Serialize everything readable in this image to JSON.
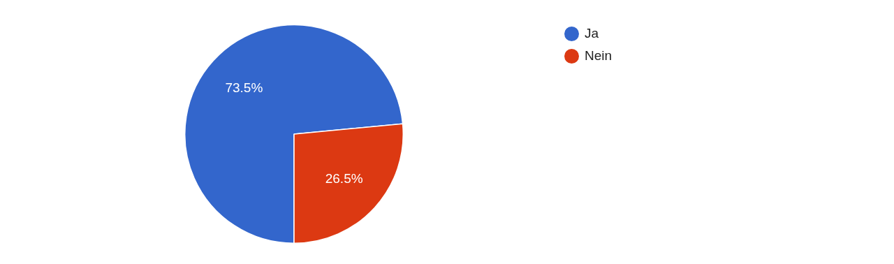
{
  "chart_data": {
    "type": "pie",
    "categories": [
      "Ja",
      "Nein"
    ],
    "values": [
      73.5,
      26.5
    ],
    "colors": [
      "#3366cc",
      "#dc3912"
    ],
    "value_labels": [
      "73.5%",
      "26.5%"
    ],
    "legend": "top right"
  }
}
